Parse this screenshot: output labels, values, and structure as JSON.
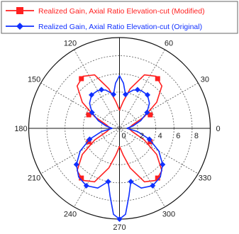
{
  "chart_data": {
    "type": "line",
    "projection": "polar",
    "angle_unit": "degrees",
    "zero_direction": "right",
    "angle_ticks": [
      0,
      30,
      60,
      120,
      150,
      180,
      210,
      240,
      270,
      300,
      330
    ],
    "radial_ticks": [
      0,
      2,
      4,
      6,
      8
    ],
    "radial_tick_labels": [
      "0",
      "2",
      "4",
      "6",
      "8"
    ],
    "rlim": [
      0,
      10
    ],
    "grid": true,
    "legend_position": "top",
    "series": [
      {
        "name": "Realized Gain, Axial Ratio Elevation-cut (Modified)",
        "color": "#ff2020",
        "marker": "square",
        "points": [
          [
            0,
            1
          ],
          [
            15,
            1.5
          ],
          [
            25,
            3
          ],
          [
            35,
            5
          ],
          [
            45,
            6.6
          ],
          [
            55,
            7
          ],
          [
            65,
            6.5
          ],
          [
            75,
            4.5
          ],
          [
            82,
            3
          ],
          [
            90,
            2
          ],
          [
            98,
            3
          ],
          [
            105,
            4.5
          ],
          [
            115,
            6.5
          ],
          [
            125,
            7
          ],
          [
            135,
            6.6
          ],
          [
            145,
            5
          ],
          [
            155,
            3
          ],
          [
            165,
            1.5
          ],
          [
            180,
            1
          ],
          [
            195,
            1.5
          ],
          [
            205,
            3
          ],
          [
            215,
            5
          ],
          [
            225,
            6.6
          ],
          [
            235,
            7
          ],
          [
            245,
            6.5
          ],
          [
            255,
            4.5
          ],
          [
            262,
            3
          ],
          [
            270,
            2
          ],
          [
            278,
            3
          ],
          [
            285,
            4.5
          ],
          [
            295,
            6.5
          ],
          [
            305,
            7
          ],
          [
            315,
            6.6
          ],
          [
            325,
            5
          ],
          [
            335,
            3
          ],
          [
            345,
            1.5
          ],
          [
            360,
            1
          ]
        ],
        "marker_points": [
          [
            23.7,
            3.7
          ],
          [
            52.5,
            6.9
          ],
          [
            127.5,
            6.9
          ],
          [
            156.3,
            3.7
          ],
          [
            203.7,
            3.7
          ],
          [
            232.5,
            6.9
          ],
          [
            307.5,
            6.9
          ],
          [
            336.3,
            3.7
          ]
        ]
      },
      {
        "name": "Realized Gain, Axial Ratio Elevation-cut (Original)",
        "color": "#1030ff",
        "marker": "diamond",
        "points": [
          [
            0,
            0.8
          ],
          [
            10,
            1.5
          ],
          [
            20,
            2.5
          ],
          [
            30,
            3.5
          ],
          [
            40,
            4.3
          ],
          [
            50,
            4.8
          ],
          [
            60,
            4.8
          ],
          [
            70,
            4.5
          ],
          [
            80,
            3.8
          ],
          [
            85,
            5
          ],
          [
            90,
            5.8
          ],
          [
            95,
            5
          ],
          [
            100,
            3.8
          ],
          [
            110,
            4.5
          ],
          [
            120,
            4.8
          ],
          [
            130,
            4.8
          ],
          [
            140,
            4.3
          ],
          [
            150,
            3.5
          ],
          [
            160,
            2.5
          ],
          [
            170,
            1.5
          ],
          [
            180,
            0.8
          ],
          [
            190,
            2
          ],
          [
            200,
            3.5
          ],
          [
            210,
            5
          ],
          [
            220,
            6.2
          ],
          [
            230,
            7
          ],
          [
            240,
            7.3
          ],
          [
            250,
            7
          ],
          [
            258,
            6
          ],
          [
            262,
            7.5
          ],
          [
            266,
            9.5
          ],
          [
            270,
            10
          ],
          [
            274,
            9.5
          ],
          [
            278,
            7.5
          ],
          [
            282,
            6
          ],
          [
            290,
            7
          ],
          [
            300,
            7.3
          ],
          [
            310,
            7
          ],
          [
            320,
            6.2
          ],
          [
            330,
            5
          ],
          [
            340,
            3.5
          ],
          [
            350,
            2
          ],
          [
            360,
            0.8
          ]
        ],
        "marker_points": [
          [
            30,
            3.5
          ],
          [
            50,
            4.8
          ],
          [
            65,
            4.7
          ],
          [
            80,
            3.8
          ],
          [
            100,
            3.8
          ],
          [
            115,
            4.7
          ],
          [
            130,
            4.8
          ],
          [
            150,
            3.5
          ],
          [
            200,
            3.5
          ],
          [
            220,
            6.2
          ],
          [
            240,
            7.3
          ],
          [
            258,
            6
          ],
          [
            270,
            10
          ],
          [
            282,
            6
          ],
          [
            300,
            7.3
          ],
          [
            320,
            6.2
          ],
          [
            340,
            3.5
          ]
        ]
      }
    ]
  }
}
